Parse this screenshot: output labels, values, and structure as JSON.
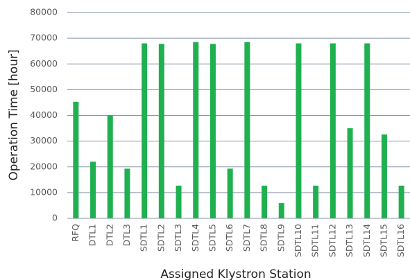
{
  "chart_data": {
    "type": "bar",
    "x_label": "Assigned Klystron Station",
    "y_label": "Operation Time [hour]",
    "categories": [
      "RFQ",
      "DTL1",
      "DTL2",
      "DTL3",
      "SDTL1",
      "SDTL2",
      "SDTL3",
      "SDTL4",
      "SDTL5",
      "SDTL6",
      "SDTL7",
      "SDTL8",
      "SDTL9",
      "SDTL10",
      "SDTL11",
      "SDTL12",
      "SDTL13",
      "SDTL14",
      "SDTL15",
      "SDTL16"
    ],
    "values": [
      45300,
      22000,
      40000,
      19300,
      68000,
      67800,
      12700,
      68500,
      67800,
      19300,
      68500,
      12700,
      5900,
      68000,
      12700,
      68000,
      35000,
      68000,
      32600,
      12700
    ],
    "color": "#1fb04f",
    "ylim": [
      0,
      80000
    ],
    "yticks": [
      0,
      10000,
      20000,
      30000,
      40000,
      50000,
      60000,
      70000,
      80000
    ],
    "grid": true
  }
}
